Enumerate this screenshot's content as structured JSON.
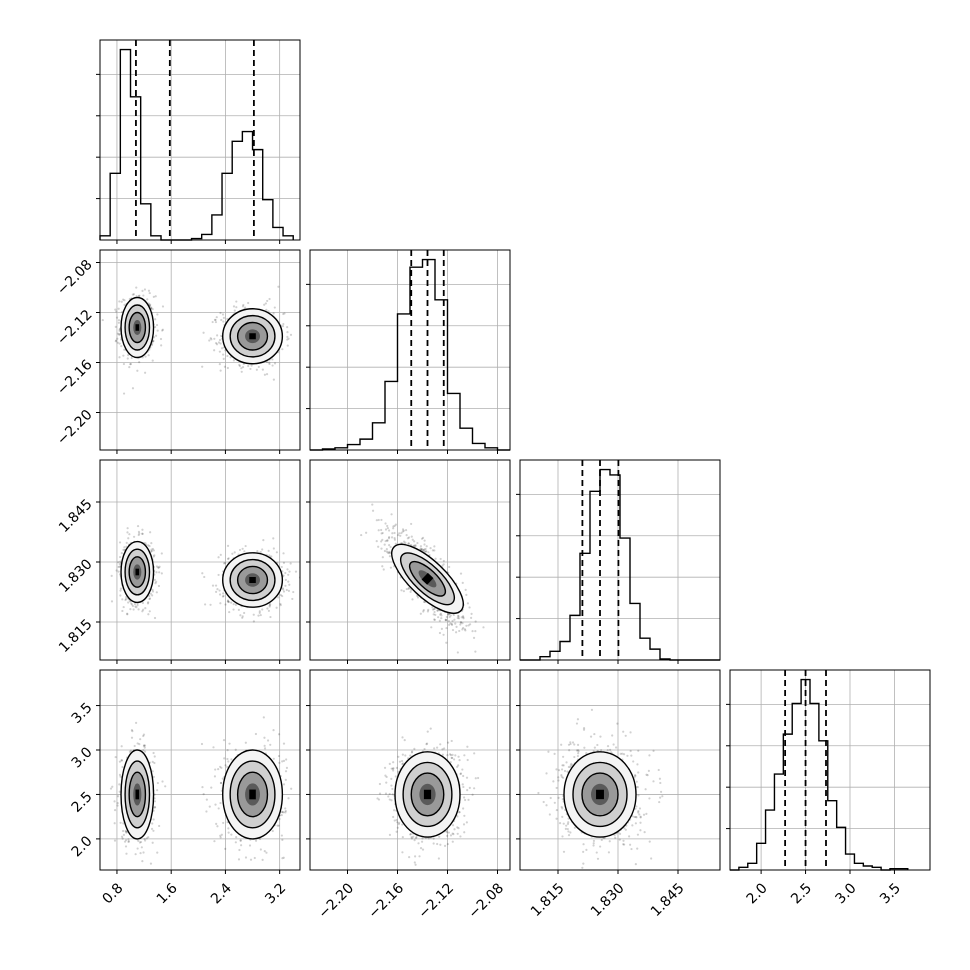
{
  "chart_data": {
    "type": "corner",
    "parameters": [
      "",
      "",
      "",
      ""
    ],
    "axes": [
      {
        "ticks": [
          0.8,
          1.6,
          2.4,
          3.2
        ],
        "tick_labels": [
          "0.8",
          "1.6",
          "2.4",
          "3.2"
        ],
        "range": [
          0.55,
          3.5
        ]
      },
      {
        "ticks": [
          -2.2,
          -2.16,
          -2.12,
          -2.08
        ],
        "tick_labels": [
          "−2.20",
          "−2.16",
          "−2.12",
          "−2.08"
        ],
        "range": [
          -2.23,
          -2.07
        ]
      },
      {
        "ticks": [
          1.815,
          1.83,
          1.845
        ],
        "tick_labels": [
          "1.815",
          "1.830",
          "1.845"
        ],
        "range": [
          1.8055,
          1.8555
        ]
      },
      {
        "ticks": [
          2.0,
          2.5,
          3.0,
          3.5
        ],
        "tick_labels": [
          "2.0",
          "2.5",
          "3.0",
          "3.5"
        ],
        "range": [
          1.65,
          3.9
        ]
      }
    ],
    "histograms": [
      {
        "bin_edges": [
          0.55,
          0.7,
          0.85,
          1.0,
          1.15,
          1.3,
          1.45,
          1.6,
          1.75,
          1.9,
          2.05,
          2.2,
          2.35,
          2.5,
          2.65,
          2.8,
          2.95,
          3.1,
          3.25,
          3.4
        ],
        "counts": [
          3,
          48,
          137,
          103,
          26,
          3,
          0,
          0,
          0,
          1,
          4,
          18,
          48,
          71,
          78,
          65,
          29,
          9,
          3
        ],
        "quantile_lines": [
          1.08,
          1.58,
          2.82
        ]
      },
      {
        "bin_edges": [
          -2.23,
          -2.22,
          -2.21,
          -2.2,
          -2.19,
          -2.18,
          -2.17,
          -2.16,
          -2.15,
          -2.14,
          -2.13,
          -2.12,
          -2.11,
          -2.1,
          -2.09,
          -2.08,
          -2.07
        ],
        "counts": [
          0,
          1,
          2,
          5,
          10,
          25,
          63,
          125,
          168,
          175,
          138,
          52,
          20,
          6,
          2,
          0
        ],
        "quantile_lines": [
          -2.149,
          -2.136,
          -2.123
        ]
      },
      {
        "bin_edges": [
          1.8055,
          1.808,
          1.8105,
          1.813,
          1.8155,
          1.818,
          1.8205,
          1.823,
          1.8255,
          1.828,
          1.8305,
          1.833,
          1.8355,
          1.838,
          1.8405,
          1.843,
          1.8455,
          1.848,
          1.8505,
          1.853,
          1.8555
        ],
        "counts": [
          0,
          0,
          3,
          8,
          17,
          41,
          98,
          155,
          175,
          170,
          112,
          52,
          20,
          10,
          1,
          0,
          0,
          0,
          0,
          0
        ],
        "quantile_lines": [
          1.8211,
          1.8255,
          1.8301
        ]
      },
      {
        "bin_edges": [
          1.65,
          1.75,
          1.85,
          1.95,
          2.05,
          2.15,
          2.25,
          2.35,
          2.45,
          2.55,
          2.65,
          2.75,
          2.85,
          2.95,
          3.05,
          3.15,
          3.25,
          3.35,
          3.45,
          3.55,
          3.65
        ],
        "counts": [
          0,
          2,
          5,
          20,
          45,
          72,
          102,
          125,
          143,
          125,
          97,
          52,
          32,
          12,
          5,
          3,
          2,
          0,
          1,
          1
        ],
        "quantile_lines": [
          2.27,
          2.5,
          2.73
        ]
      }
    ],
    "contour_plots": [
      {
        "row": 1,
        "col": 0,
        "modes": [
          {
            "mean": [
              1.1,
              -2.132
            ],
            "sd": [
              0.12,
              0.012
            ]
          },
          {
            "mean": [
              2.8,
              -2.139
            ],
            "sd": [
              0.22,
              0.011
            ]
          }
        ]
      },
      {
        "row": 2,
        "col": 0,
        "modes": [
          {
            "mean": [
              1.1,
              1.8275
            ],
            "sd": [
              0.12,
              0.0038
            ]
          },
          {
            "mean": [
              2.8,
              1.8255
            ],
            "sd": [
              0.22,
              0.0034
            ]
          }
        ]
      },
      {
        "row": 2,
        "col": 1,
        "modes": [
          {
            "mean": [
              -2.136,
              1.8258
            ],
            "sd": [
              0.014,
              0.0052
            ],
            "corr": -0.8
          }
        ]
      },
      {
        "row": 3,
        "col": 0,
        "modes": [
          {
            "mean": [
              1.1,
              2.5
            ],
            "sd": [
              0.12,
              0.25
            ]
          },
          {
            "mean": [
              2.8,
              2.5
            ],
            "sd": [
              0.22,
              0.25
            ]
          }
        ]
      },
      {
        "row": 3,
        "col": 1,
        "modes": [
          {
            "mean": [
              -2.136,
              2.5
            ],
            "sd": [
              0.013,
              0.24
            ]
          }
        ]
      },
      {
        "row": 3,
        "col": 2,
        "modes": [
          {
            "mean": [
              1.8255,
              2.5
            ],
            "sd": [
              0.0045,
              0.24
            ]
          }
        ]
      }
    ],
    "grid": true,
    "colors": {
      "ink": "#000000",
      "grid": "#b0b0b0",
      "points": "#000000"
    }
  }
}
